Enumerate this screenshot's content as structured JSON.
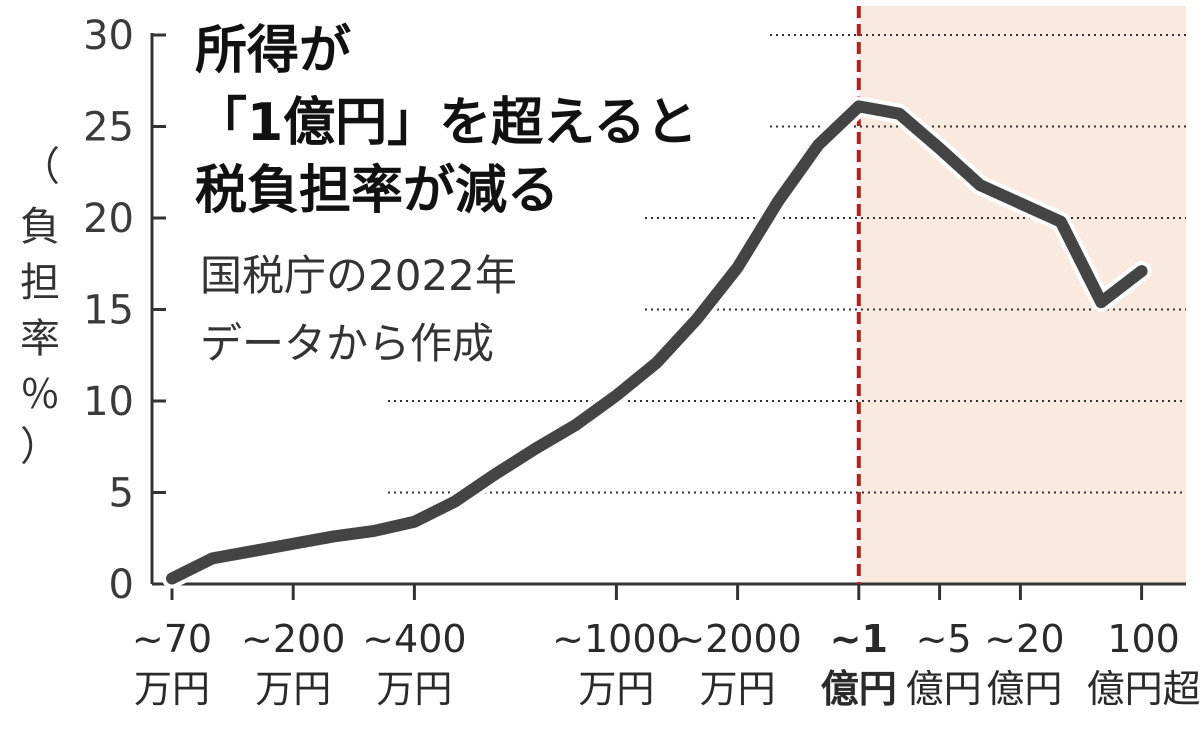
{
  "chart_data": {
    "type": "line",
    "title_lines": [
      "所得が",
      "「1億円」を超えると",
      "税負担率が減る"
    ],
    "subtitle_lines": [
      "国税庁の2022年",
      "データから作成"
    ],
    "ylabel_chars": [
      "（",
      "負",
      "担",
      "率",
      "％",
      "）"
    ],
    "ylim": [
      0,
      30
    ],
    "yticks": [
      "0",
      "5",
      "10",
      "15",
      "20",
      "25",
      "30"
    ],
    "x_labels": [
      {
        "idx": 0,
        "lines": [
          "~70",
          "万円"
        ],
        "highlight": false
      },
      {
        "idx": 3,
        "lines": [
          "~200",
          "万円"
        ],
        "highlight": false
      },
      {
        "idx": 6,
        "lines": [
          "~400",
          "万円"
        ],
        "highlight": false
      },
      {
        "idx": 11,
        "lines": [
          "~1000",
          "万円"
        ],
        "highlight": false
      },
      {
        "idx": 14,
        "lines": [
          "~2000",
          "万円"
        ],
        "highlight": false
      },
      {
        "idx": 17,
        "lines": [
          "~1",
          "億円"
        ],
        "highlight": true
      },
      {
        "idx": 19,
        "lines": [
          "~5",
          "億円"
        ],
        "highlight": false
      },
      {
        "idx": 21,
        "lines": [
          "~20",
          "億円"
        ],
        "highlight": false
      },
      {
        "idx": 24,
        "lines": [
          "100",
          "億円超"
        ],
        "highlight": false
      }
    ],
    "series": [
      {
        "values": [
          0.3,
          1.4,
          1.8,
          2.2,
          2.6,
          2.9,
          3.4,
          4.5,
          6.0,
          7.4,
          8.7,
          10.3,
          12.1,
          14.5,
          17.3,
          20.9,
          24.0,
          26.1,
          25.7,
          23.8,
          21.8,
          20.8,
          19.8,
          15.4,
          17.1
        ]
      }
    ],
    "highlight_from_index": 17,
    "colors": {
      "line": "#444444",
      "line_halo": "#ffffff",
      "marker": "#b22222",
      "highlight_bg": "#f9e9df",
      "axis": "#333333",
      "grid": "#333333",
      "highlight_text": "#b22222"
    },
    "grid": "dotted"
  }
}
